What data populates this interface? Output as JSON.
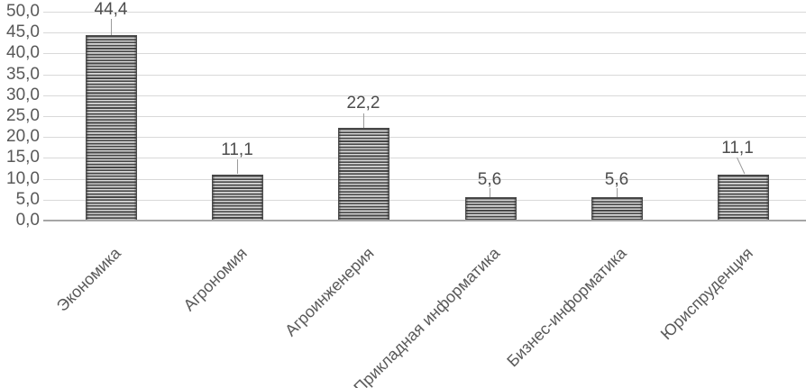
{
  "chart_data": {
    "type": "bar",
    "title": "",
    "categories": [
      "Экономика",
      "Агрономия",
      "Агроинженерия",
      "Прикладная информатика",
      "Бизнес-информатика",
      "Юриспруденция"
    ],
    "values": [
      44.4,
      11.1,
      22.2,
      5.6,
      5.6,
      11.1
    ],
    "data_labels": [
      "44,4",
      "11,1",
      "22,2",
      "5,6",
      "5,6",
      "11,1"
    ],
    "y_tick_values": [
      0,
      5,
      10,
      15,
      20,
      25,
      30,
      35,
      40,
      45,
      50
    ],
    "y_tick_labels": [
      "0,0",
      "5,0",
      "10,0",
      "15,0",
      "20,0",
      "25,0",
      "30,0",
      "35,0",
      "40,0",
      "45,0",
      "50,0"
    ],
    "ylim": [
      0,
      50
    ],
    "xlabel": "",
    "ylabel": "",
    "grid": true,
    "legend": "none",
    "bar_pattern": "horizontal-stripes",
    "decimal_separator": ",",
    "colors": {
      "text": "#595959",
      "data_label_text": "#4d4d4d",
      "gridline": "#d9d9d9",
      "axis_line": "#a6a6a6",
      "leader_line": "#9b9b9b",
      "stripe_dark": "#474747",
      "stripe_light": "#e3e3e3",
      "bar_border": "#4a4a4a",
      "background": "#ffffff"
    }
  }
}
